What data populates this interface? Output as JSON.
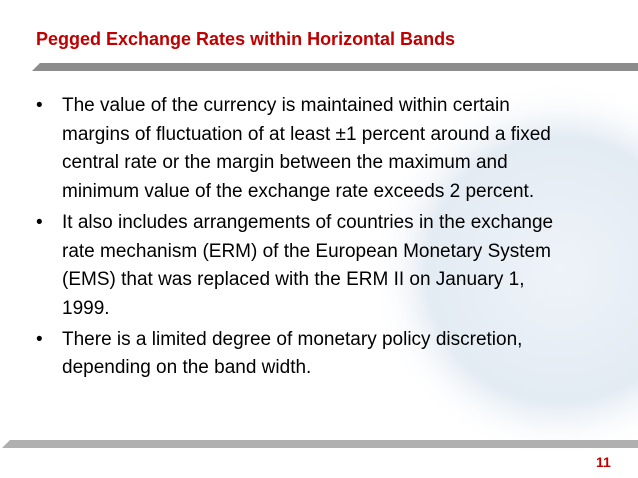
{
  "title": "Pegged Exchange Rates within Horizontal Bands",
  "bullets": [
    "The value of the currency is maintained within certain margins of fluctuation of at least ±1 percent around a fixed central rate or the margin between the maximum and minimum value of the exchange rate exceeds 2 percent.",
    "It also includes arrangements of countries in the exchange rate mechanism (ERM) of the European Monetary System (EMS) that was replaced with the ERM II on January 1, 1999.",
    "There is a limited degree of monetary policy discretion, depending on the band width."
  ],
  "page_number": "11"
}
